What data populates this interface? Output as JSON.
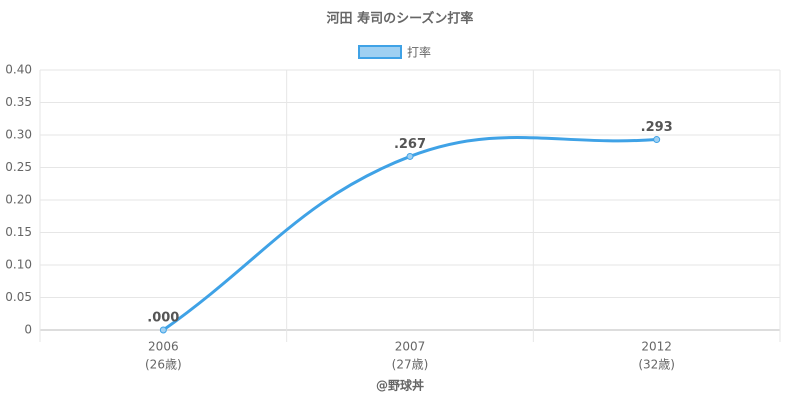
{
  "chart_data": {
    "type": "line",
    "title": "河田 寿司のシーズン打率",
    "categories": [
      "2006",
      "2007",
      "2012"
    ],
    "category_sublabels": [
      "(26歳)",
      "(27歳)",
      "(32歳)"
    ],
    "series": [
      {
        "name": "打率",
        "color": "#3fa2e6",
        "fill": "#9fd0f2",
        "values": [
          0,
          0.267,
          0.293
        ],
        "value_labels": [
          ".000",
          ".267",
          ".293"
        ]
      }
    ],
    "ylim": [
      0,
      0.4
    ],
    "yticks": [
      0,
      0.05,
      {
        "value": 0.1,
        "label": "0.10"
      },
      0.15,
      {
        "value": 0.2,
        "label": "0.20"
      },
      0.25,
      {
        "value": 0.3,
        "label": "0.30"
      },
      0.35,
      {
        "value": 0.4,
        "label": "0.40"
      }
    ],
    "grid": true,
    "legend": "top",
    "footer": "@野球丼"
  }
}
